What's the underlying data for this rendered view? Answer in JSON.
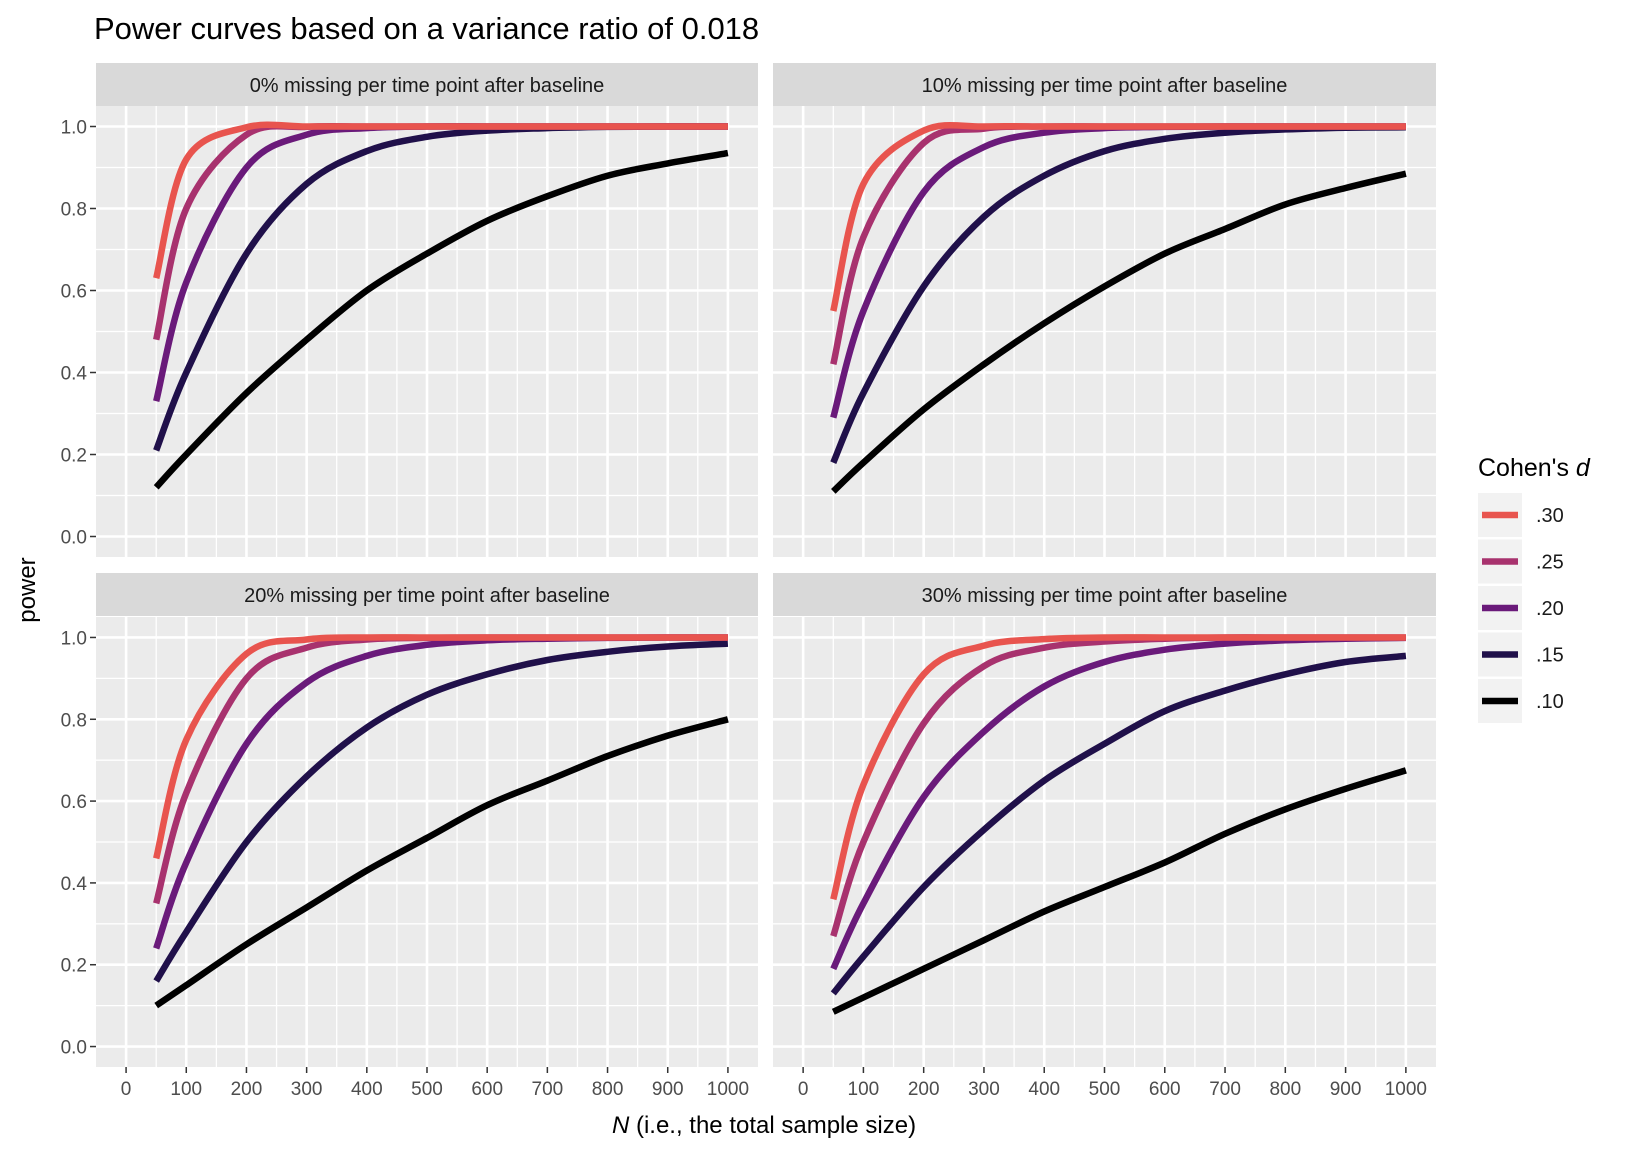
{
  "chart_data": {
    "type": "line",
    "title": "Power curves based on a variance ratio of 0.018",
    "xlabel_italic": "N",
    "xlabel_rest": " (i.e., the total sample size)",
    "ylabel": "power",
    "xlim": [
      0,
      1000
    ],
    "ylim": [
      0,
      1
    ],
    "x_ticks": [
      "0",
      "100",
      "200",
      "300",
      "400",
      "500",
      "600",
      "700",
      "800",
      "900",
      "1000"
    ],
    "y_ticks": [
      "0.0",
      "0.2",
      "0.4",
      "0.6",
      "0.8",
      "1.0"
    ],
    "grid": true,
    "x": [
      50,
      100,
      200,
      300,
      400,
      500,
      600,
      700,
      800,
      900,
      1000
    ],
    "legend": {
      "title_text": "Cohen's ",
      "title_italic": "d",
      "position": "right",
      "entries": [
        {
          "label": ".30",
          "color": "#E8544E"
        },
        {
          "label": ".25",
          "color": "#A8326E"
        },
        {
          "label": ".20",
          "color": "#6A1A7A"
        },
        {
          "label": ".15",
          "color": "#20104A"
        },
        {
          "label": ".10",
          "color": "#000000"
        }
      ]
    },
    "panels": [
      {
        "strip": "0% missing per time point after baseline",
        "series": [
          {
            "name": ".10",
            "values": [
              0.12,
              0.2,
              0.35,
              0.48,
              0.6,
              0.69,
              0.77,
              0.83,
              0.88,
              0.91,
              0.935
            ]
          },
          {
            "name": ".15",
            "values": [
              0.21,
              0.4,
              0.69,
              0.86,
              0.94,
              0.975,
              0.99,
              0.996,
              0.999,
              1.0,
              1.0
            ]
          },
          {
            "name": ".20",
            "values": [
              0.33,
              0.62,
              0.9,
              0.98,
              0.996,
              1.0,
              1.0,
              1.0,
              1.0,
              1.0,
              1.0
            ]
          },
          {
            "name": ".25",
            "values": [
              0.48,
              0.8,
              0.98,
              0.999,
              1.0,
              1.0,
              1.0,
              1.0,
              1.0,
              1.0,
              1.0
            ]
          },
          {
            "name": ".30",
            "values": [
              0.63,
              0.92,
              0.998,
              1.0,
              1.0,
              1.0,
              1.0,
              1.0,
              1.0,
              1.0,
              1.0
            ]
          }
        ]
      },
      {
        "strip": "10% missing per time point after baseline",
        "series": [
          {
            "name": ".10",
            "values": [
              0.11,
              0.18,
              0.31,
              0.42,
              0.52,
              0.61,
              0.69,
              0.75,
              0.81,
              0.85,
              0.885
            ]
          },
          {
            "name": ".15",
            "values": [
              0.18,
              0.35,
              0.61,
              0.78,
              0.88,
              0.94,
              0.97,
              0.985,
              0.993,
              0.997,
              0.998
            ]
          },
          {
            "name": ".20",
            "values": [
              0.29,
              0.55,
              0.84,
              0.95,
              0.985,
              0.996,
              0.999,
              1.0,
              1.0,
              1.0,
              1.0
            ]
          },
          {
            "name": ".25",
            "values": [
              0.42,
              0.73,
              0.96,
              0.995,
              1.0,
              1.0,
              1.0,
              1.0,
              1.0,
              1.0,
              1.0
            ]
          },
          {
            "name": ".30",
            "values": [
              0.55,
              0.86,
              0.99,
              1.0,
              1.0,
              1.0,
              1.0,
              1.0,
              1.0,
              1.0,
              1.0
            ]
          }
        ]
      },
      {
        "strip": "20% missing per time point after baseline",
        "series": [
          {
            "name": ".10",
            "values": [
              0.1,
              0.15,
              0.25,
              0.34,
              0.43,
              0.51,
              0.59,
              0.65,
              0.71,
              0.76,
              0.8
            ]
          },
          {
            "name": ".15",
            "values": [
              0.16,
              0.28,
              0.5,
              0.66,
              0.78,
              0.86,
              0.91,
              0.945,
              0.965,
              0.978,
              0.985
            ]
          },
          {
            "name": ".20",
            "values": [
              0.24,
              0.45,
              0.74,
              0.89,
              0.955,
              0.982,
              0.993,
              0.997,
              0.999,
              1.0,
              1.0
            ]
          },
          {
            "name": ".25",
            "values": [
              0.35,
              0.62,
              0.9,
              0.975,
              0.995,
              0.999,
              1.0,
              1.0,
              1.0,
              1.0,
              1.0
            ]
          },
          {
            "name": ".30",
            "values": [
              0.46,
              0.75,
              0.96,
              0.995,
              1.0,
              1.0,
              1.0,
              1.0,
              1.0,
              1.0,
              1.0
            ]
          }
        ]
      },
      {
        "strip": "30% missing per time point after baseline",
        "series": [
          {
            "name": ".10",
            "values": [
              0.085,
              0.12,
              0.19,
              0.26,
              0.33,
              0.39,
              0.45,
              0.52,
              0.58,
              0.63,
              0.675
            ]
          },
          {
            "name": ".15",
            "values": [
              0.13,
              0.22,
              0.39,
              0.53,
              0.65,
              0.74,
              0.82,
              0.87,
              0.91,
              0.94,
              0.955
            ]
          },
          {
            "name": ".20",
            "values": [
              0.19,
              0.35,
              0.61,
              0.77,
              0.88,
              0.94,
              0.97,
              0.985,
              0.993,
              0.997,
              0.999
            ]
          },
          {
            "name": ".25",
            "values": [
              0.27,
              0.5,
              0.79,
              0.93,
              0.975,
              0.99,
              0.997,
              1.0,
              1.0,
              1.0,
              1.0
            ]
          },
          {
            "name": ".30",
            "values": [
              0.36,
              0.64,
              0.91,
              0.98,
              0.996,
              1.0,
              1.0,
              1.0,
              1.0,
              1.0,
              1.0
            ]
          }
        ]
      }
    ]
  }
}
